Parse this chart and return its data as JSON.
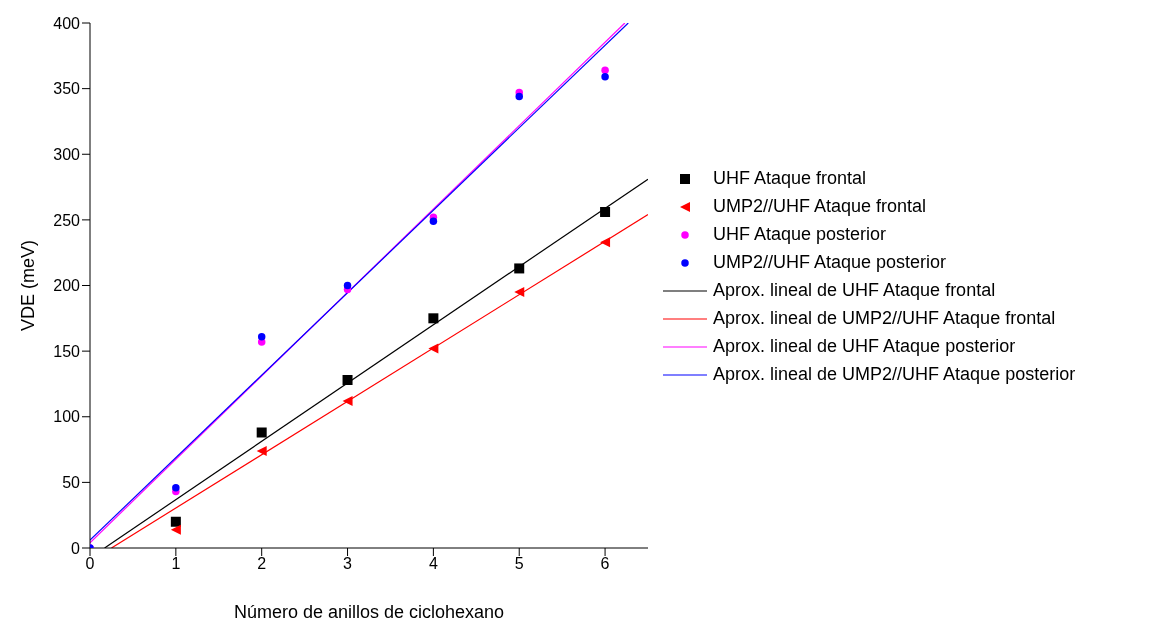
{
  "chart_data": {
    "type": "scatter",
    "xlabel": "Número de anillos de ciclohexano",
    "ylabel": "VDE (meV)",
    "xlim": [
      0,
      6.5
    ],
    "xticks": [
      0,
      1,
      2,
      3,
      4,
      5,
      6
    ],
    "ylim": [
      0,
      400
    ],
    "yticks": [
      0,
      50,
      100,
      150,
      200,
      250,
      300,
      350,
      400
    ],
    "grid": false,
    "legend": "right",
    "series": [
      {
        "name": "UHF Ataque frontal",
        "marker": "square",
        "color": "#000000",
        "x": [
          1,
          2,
          3,
          4,
          5,
          6
        ],
        "values": [
          20,
          88,
          128,
          175,
          213,
          256
        ]
      },
      {
        "name": "UMP2//UHF Ataque frontal",
        "marker": "triangle",
        "color": "#ff0000",
        "x": [
          1,
          2,
          3,
          4,
          5,
          6
        ],
        "values": [
          14,
          74,
          112,
          152,
          195,
          233
        ]
      },
      {
        "name": "UHF Ataque posterior",
        "marker": "circle",
        "color": "#ff00ff",
        "x": [
          0,
          1,
          2,
          3,
          4,
          5,
          6
        ],
        "values": [
          0,
          43,
          157,
          197,
          252,
          347,
          364
        ]
      },
      {
        "name": "UMP2//UHF Ataque posterior",
        "marker": "circle",
        "color": "#0000ff",
        "x": [
          0,
          1,
          2,
          3,
          4,
          5,
          6
        ],
        "values": [
          0,
          46,
          161,
          200,
          249,
          344,
          359
        ]
      },
      {
        "name": "Aprox. lineal de UHF Ataque frontal",
        "type": "line",
        "marker": "none",
        "color": "#000000",
        "x": [
          0.17,
          6.5
        ],
        "values": [
          0,
          281
        ]
      },
      {
        "name": "Aprox. lineal de UMP2//UHF Ataque frontal",
        "type": "line",
        "marker": "none",
        "color": "#ff0000",
        "x": [
          0.25,
          6.5
        ],
        "values": [
          0,
          254
        ]
      },
      {
        "name": "Aprox. lineal de UHF Ataque posterior",
        "type": "line",
        "marker": "none",
        "color": "#ff00ff",
        "x": [
          0,
          6.23
        ],
        "values": [
          4,
          400
        ]
      },
      {
        "name": "Aprox. lineal de UMP2//UHF Ataque posterior",
        "type": "line",
        "marker": "none",
        "color": "#0000ff",
        "x": [
          0,
          6.27
        ],
        "values": [
          6,
          400
        ]
      }
    ]
  }
}
